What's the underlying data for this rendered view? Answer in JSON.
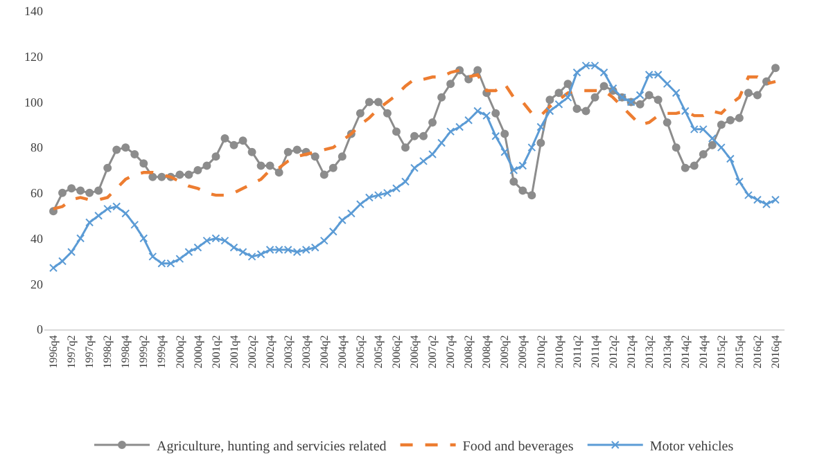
{
  "chart_data": {
    "type": "line",
    "categories": [
      "1996q4",
      null,
      "1997q2",
      null,
      "1997q4",
      null,
      "1998q2",
      null,
      "1998q4",
      null,
      "1999q2",
      null,
      "1999q4",
      null,
      "2000q2",
      null,
      "2000q4",
      null,
      "2001q2",
      null,
      "2001q4",
      null,
      "2002q2",
      null,
      "2002q4",
      null,
      "2003q2",
      null,
      "2003q4",
      null,
      "2004q2",
      null,
      "2004q4",
      null,
      "2005q2",
      null,
      "2005q4",
      null,
      "2006q2",
      null,
      "2006q4",
      null,
      "2007q2",
      null,
      "2007q4",
      null,
      "2008q2",
      null,
      "2008q4",
      null,
      "2009q2",
      null,
      "2009q4",
      null,
      "2010q2",
      null,
      "2010q4",
      null,
      "2011q2",
      null,
      "2011q4",
      null,
      "2012q2",
      null,
      "2012q4",
      null,
      "2013q2",
      null,
      "2013q4",
      null,
      "2014q2",
      null,
      "2014q4",
      null,
      "2015q2",
      null,
      "2015q4",
      null,
      "2016q2",
      null,
      "2016q4"
    ],
    "series": [
      {
        "name": "Agriculture, hunting and servicies related",
        "color": "#8c8c8c",
        "marker": "circle",
        "line_style": "solid",
        "values": [
          52,
          60,
          62,
          61,
          60,
          61,
          71,
          79,
          80,
          77,
          73,
          67,
          67,
          67,
          68,
          68,
          70,
          72,
          76,
          84,
          81,
          83,
          78,
          72,
          72,
          69,
          78,
          79,
          78,
          76,
          68,
          71,
          76,
          86,
          95,
          100,
          100,
          95,
          87,
          80,
          85,
          85,
          91,
          102,
          108,
          114,
          110,
          114,
          104,
          95,
          86,
          65,
          61,
          59,
          82,
          101,
          104,
          108,
          97,
          96,
          102,
          107,
          105,
          102,
          100,
          99,
          103,
          101,
          91,
          80,
          71,
          72,
          77,
          81,
          90,
          92,
          93,
          104,
          103,
          109,
          115
        ]
      },
      {
        "name": "Food and beverages",
        "color": "#ed7d31",
        "marker": "none",
        "line_style": "dashed",
        "values": [
          53,
          54,
          57,
          58,
          57,
          57,
          58,
          62,
          66,
          68,
          69,
          69,
          68,
          67,
          65,
          63,
          62,
          60,
          59,
          59,
          60,
          62,
          64,
          66,
          70,
          71,
          74,
          76,
          77,
          78,
          79,
          80,
          83,
          86,
          90,
          93,
          97,
          100,
          103,
          107,
          110,
          110,
          111,
          111,
          113,
          114,
          111,
          112,
          105,
          105,
          108,
          102,
          100,
          95,
          94,
          98,
          101,
          104,
          105,
          105,
          105,
          105,
          102,
          98,
          94,
          90,
          91,
          94,
          95,
          95,
          96,
          94,
          94,
          96,
          95,
          99,
          102,
          111,
          111,
          108,
          109
        ]
      },
      {
        "name": "Motor vehicles",
        "color": "#5b9bd5",
        "marker": "cross",
        "line_style": "solid",
        "values": [
          27,
          30,
          34,
          40,
          47,
          50,
          53,
          54,
          51,
          46,
          40,
          32,
          29,
          29,
          31,
          34,
          36,
          39,
          40,
          39,
          36,
          34,
          32,
          33,
          35,
          35,
          35,
          34,
          35,
          36,
          39,
          43,
          48,
          51,
          55,
          58,
          59,
          60,
          62,
          65,
          71,
          74,
          77,
          82,
          87,
          89,
          92,
          96,
          94,
          85,
          78,
          70,
          72,
          80,
          89,
          96,
          99,
          102,
          113,
          116,
          116,
          113,
          106,
          102,
          100,
          103,
          112,
          112,
          108,
          104,
          96,
          88,
          88,
          84,
          80,
          75,
          65,
          59,
          57,
          55,
          57
        ]
      }
    ],
    "ylim": [
      0,
      140
    ],
    "yticks": [
      0,
      20,
      40,
      60,
      80,
      100,
      120,
      140
    ],
    "grid": false,
    "legend": "bottom"
  }
}
